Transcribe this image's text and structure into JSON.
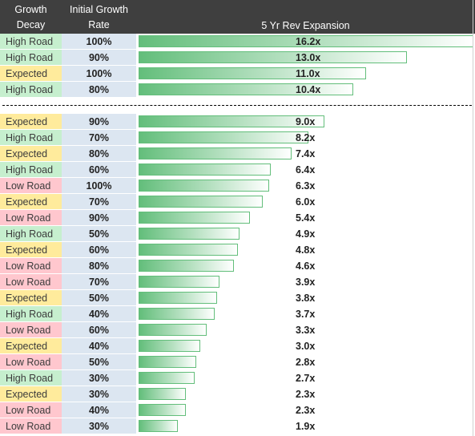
{
  "header": {
    "decay_line1": "Growth",
    "decay_line2": "Decay",
    "rate_line1": "Initial Growth",
    "rate_line2": "Rate",
    "expansion": "5 Yr Rev Expansion"
  },
  "colors": {
    "header_bg": "#3f3f3f",
    "high_road": "#c6efce",
    "low_road": "#ffc7ce",
    "expected": "#ffeb9c",
    "rate_bg": "#dce6f1",
    "bar_green": "#63be7b"
  },
  "chart_data": {
    "type": "bar",
    "orientation": "horizontal",
    "bar_max": 16.2,
    "groups": [
      {
        "rows": [
          {
            "decay": "High Road",
            "rate": "100%",
            "value": 16.2,
            "label": "16.2x"
          },
          {
            "decay": "High Road",
            "rate": "90%",
            "value": 13.0,
            "label": "13.0x"
          },
          {
            "decay": "Expected",
            "rate": "100%",
            "value": 11.0,
            "label": "11.0x"
          },
          {
            "decay": "High Road",
            "rate": "80%",
            "value": 10.4,
            "label": "10.4x"
          }
        ]
      },
      {
        "rows": [
          {
            "decay": "Expected",
            "rate": "90%",
            "value": 9.0,
            "label": "9.0x"
          },
          {
            "decay": "High Road",
            "rate": "70%",
            "value": 8.2,
            "label": "8.2x"
          },
          {
            "decay": "Expected",
            "rate": "80%",
            "value": 7.4,
            "label": "7.4x"
          },
          {
            "decay": "High Road",
            "rate": "60%",
            "value": 6.4,
            "label": "6.4x"
          },
          {
            "decay": "Low Road",
            "rate": "100%",
            "value": 6.3,
            "label": "6.3x"
          },
          {
            "decay": "Expected",
            "rate": "70%",
            "value": 6.0,
            "label": "6.0x"
          },
          {
            "decay": "Low Road",
            "rate": "90%",
            "value": 5.4,
            "label": "5.4x"
          },
          {
            "decay": "High Road",
            "rate": "50%",
            "value": 4.9,
            "label": "4.9x"
          },
          {
            "decay": "Expected",
            "rate": "60%",
            "value": 4.8,
            "label": "4.8x"
          },
          {
            "decay": "Low Road",
            "rate": "80%",
            "value": 4.6,
            "label": "4.6x"
          },
          {
            "decay": "Low Road",
            "rate": "70%",
            "value": 3.9,
            "label": "3.9x"
          },
          {
            "decay": "Expected",
            "rate": "50%",
            "value": 3.8,
            "label": "3.8x"
          },
          {
            "decay": "High Road",
            "rate": "40%",
            "value": 3.7,
            "label": "3.7x"
          },
          {
            "decay": "Low Road",
            "rate": "60%",
            "value": 3.3,
            "label": "3.3x"
          },
          {
            "decay": "Expected",
            "rate": "40%",
            "value": 3.0,
            "label": "3.0x"
          },
          {
            "decay": "Low Road",
            "rate": "50%",
            "value": 2.8,
            "label": "2.8x"
          },
          {
            "decay": "High Road",
            "rate": "30%",
            "value": 2.7,
            "label": "2.7x"
          },
          {
            "decay": "Expected",
            "rate": "30%",
            "value": 2.3,
            "label": "2.3x"
          },
          {
            "decay": "Low Road",
            "rate": "40%",
            "value": 2.3,
            "label": "2.3x"
          },
          {
            "decay": "Low Road",
            "rate": "30%",
            "value": 1.9,
            "label": "1.9x"
          }
        ]
      }
    ]
  }
}
